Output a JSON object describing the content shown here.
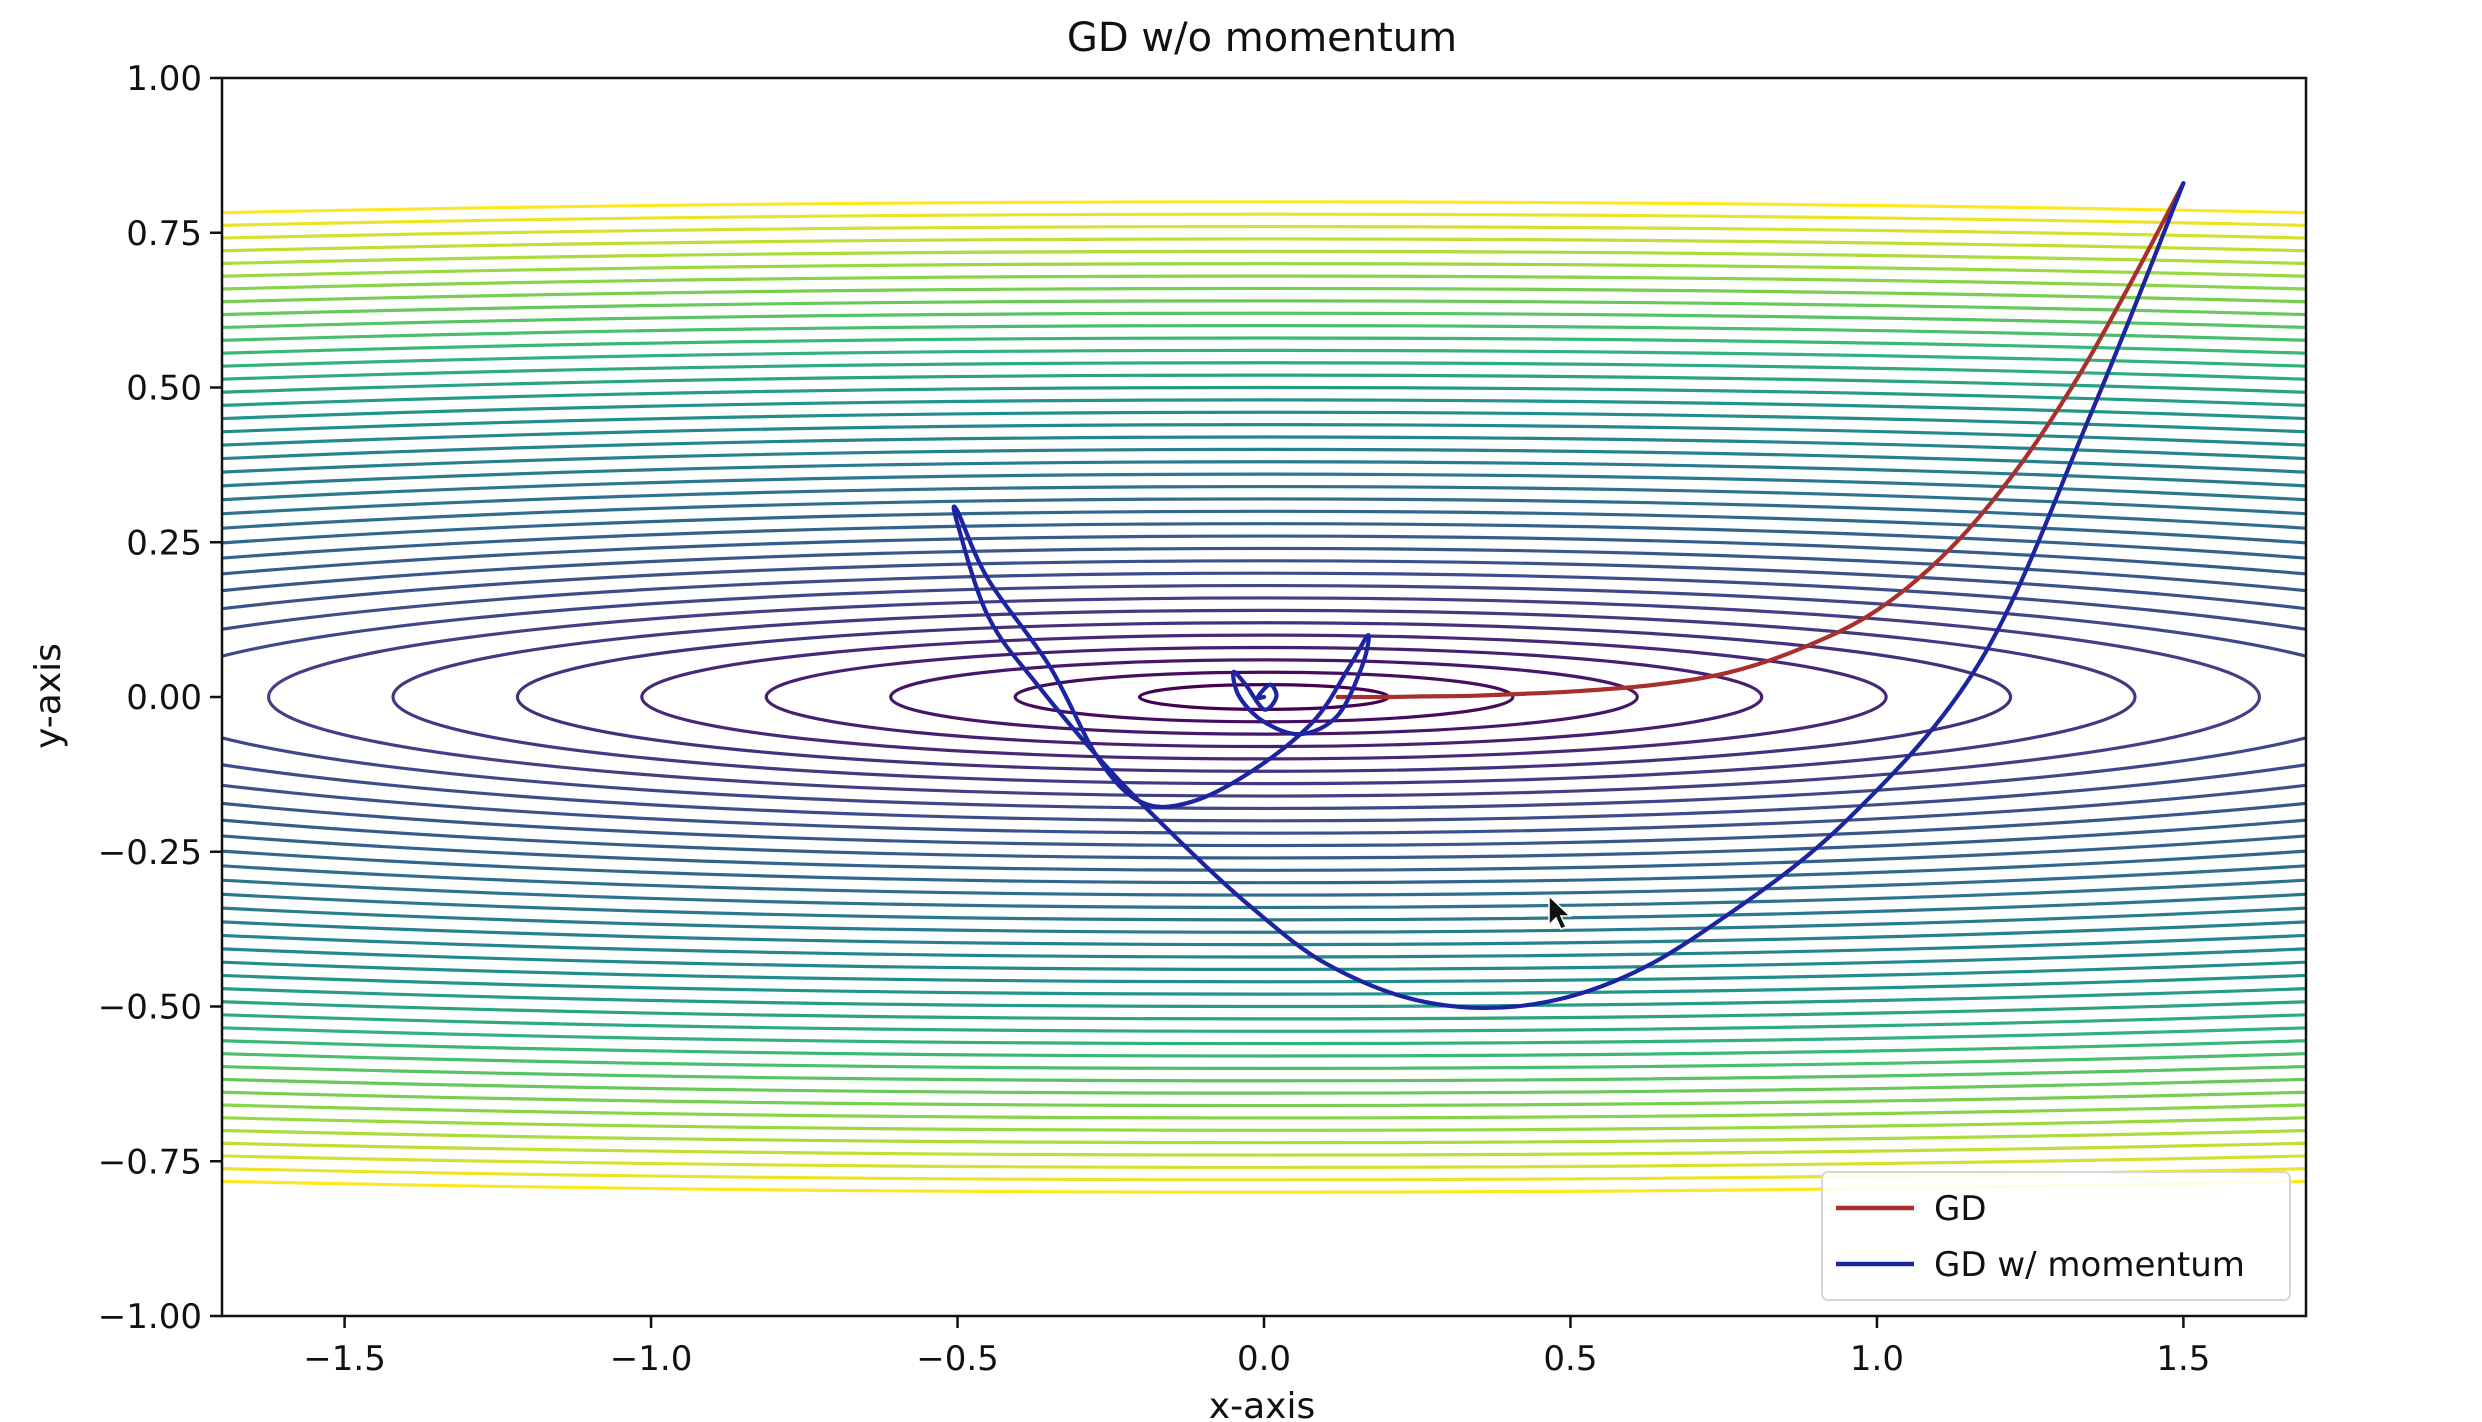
{
  "chart_data": {
    "type": "line",
    "title": "GD w/o momentum",
    "xlabel": "x-axis",
    "ylabel": "y-axis",
    "xlim": [
      -1.7,
      1.7
    ],
    "ylim": [
      -1.0,
      1.0
    ],
    "x_ticks": [
      -1.5,
      -1.0,
      -0.5,
      0.0,
      0.5,
      1.0,
      1.5
    ],
    "x_tick_labels": [
      "−1.5",
      "−1.0",
      "−0.5",
      "0.0",
      "0.5",
      "1.0",
      "1.5"
    ],
    "y_ticks": [
      1.0,
      0.75,
      0.5,
      0.25,
      0.0,
      -0.25,
      -0.5,
      -0.75,
      -1.0
    ],
    "y_tick_labels": [
      "1.00",
      "0.75",
      "0.50",
      "0.25",
      "0.00",
      "−0.25",
      "−0.50",
      "−0.75",
      "−1.00"
    ],
    "grid": false,
    "legend_position": "bottom-right",
    "background": {
      "type": "contour",
      "function": "elliptic bowl centered at (0, 0)",
      "colormap": "viridis",
      "levels": 40
    },
    "series": [
      {
        "name": "GD",
        "color": "#a8302b",
        "points": [
          [
            1.5,
            0.83
          ],
          [
            1.42,
            0.68
          ],
          [
            1.33,
            0.52
          ],
          [
            1.23,
            0.37
          ],
          [
            1.12,
            0.24
          ],
          [
            1.0,
            0.14
          ],
          [
            0.88,
            0.08
          ],
          [
            0.76,
            0.04
          ],
          [
            0.64,
            0.02
          ],
          [
            0.52,
            0.01
          ],
          [
            0.42,
            0.005
          ],
          [
            0.34,
            0.002
          ],
          [
            0.26,
            0.001
          ],
          [
            0.2,
            0.0
          ],
          [
            0.12,
            0.0
          ]
        ]
      },
      {
        "name": "GD w/ momentum",
        "color": "#1d24a0",
        "points": [
          [
            1.5,
            0.83
          ],
          [
            1.35,
            0.46
          ],
          [
            1.17,
            0.06
          ],
          [
            0.95,
            -0.2
          ],
          [
            0.73,
            -0.37
          ],
          [
            0.57,
            -0.46
          ],
          [
            0.41,
            -0.5
          ],
          [
            0.25,
            -0.49
          ],
          [
            0.1,
            -0.43
          ],
          [
            -0.02,
            -0.34
          ],
          [
            -0.13,
            -0.24
          ],
          [
            -0.25,
            -0.12
          ],
          [
            -0.37,
            0.02
          ],
          [
            -0.45,
            0.13
          ],
          [
            -0.5,
            0.28
          ],
          [
            -0.5,
            0.3
          ],
          [
            -0.45,
            0.19
          ],
          [
            -0.35,
            0.05
          ],
          [
            -0.27,
            -0.1
          ],
          [
            -0.2,
            -0.17
          ],
          [
            -0.12,
            -0.17
          ],
          [
            -0.02,
            -0.12
          ],
          [
            0.08,
            -0.04
          ],
          [
            0.14,
            0.05
          ],
          [
            0.17,
            0.1
          ],
          [
            0.16,
            0.05
          ],
          [
            0.12,
            -0.03
          ],
          [
            0.06,
            -0.06
          ],
          [
            0.0,
            -0.04
          ],
          [
            -0.04,
            0.0
          ],
          [
            -0.05,
            0.04
          ],
          [
            -0.03,
            0.02
          ],
          [
            0.0,
            -0.02
          ],
          [
            0.02,
            0.0
          ],
          [
            0.01,
            0.02
          ],
          [
            -0.01,
            0.0
          ],
          [
            0.0,
            0.0
          ]
        ]
      }
    ]
  }
}
